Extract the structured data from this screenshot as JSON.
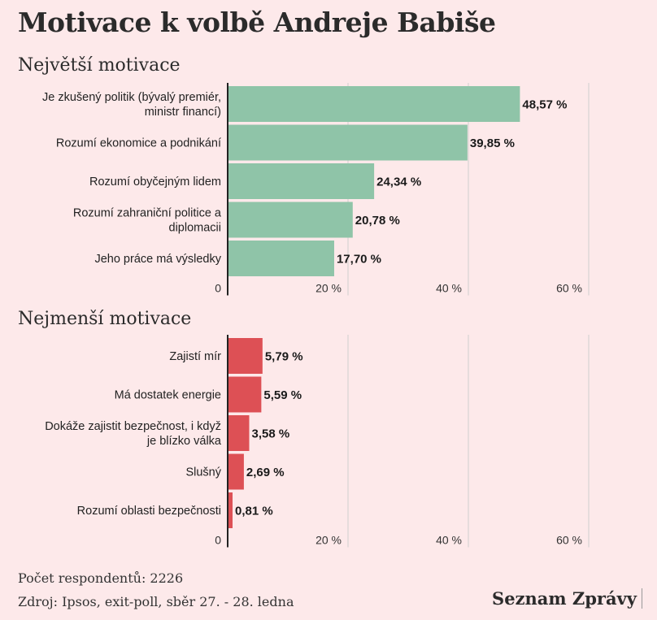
{
  "title": "Motivace k volbě Andreje Babiše",
  "chart_data": [
    {
      "type": "bar",
      "orientation": "horizontal",
      "title": "Největší motivace",
      "color": "#8fc4a8",
      "categories": [
        [
          "Je zkušený politik (bývalý premiér,",
          "ministr financí)"
        ],
        [
          "Rozumí ekonomice a podnikání"
        ],
        [
          "Rozumí obyčejným lidem"
        ],
        [
          "Rozumí zahraniční politice a",
          "diplomacii"
        ],
        [
          "Jeho práce má výsledky"
        ]
      ],
      "values": [
        48.57,
        39.85,
        24.34,
        20.78,
        17.7
      ],
      "value_labels": [
        "48,57 %",
        "39,85 %",
        "24,34 %",
        "20,78 %",
        "17,70 %"
      ],
      "xlim": [
        0,
        60
      ],
      "x_ticks": [
        0,
        20,
        40,
        60
      ],
      "x_tick_labels": [
        "0",
        "20 %",
        "40 %",
        "60 %"
      ],
      "grid": true
    },
    {
      "type": "bar",
      "orientation": "horizontal",
      "title": "Nejmenší motivace",
      "color": "#dd5055",
      "categories": [
        [
          "Zajistí mír"
        ],
        [
          "Má dostatek energie"
        ],
        [
          "Dokáže zajistit bezpečnost, i když",
          "je blízko válka"
        ],
        [
          "Slušný"
        ],
        [
          "Rozumí oblasti bezpečnosti"
        ]
      ],
      "values": [
        5.79,
        5.59,
        3.58,
        2.69,
        0.81
      ],
      "value_labels": [
        "5,79 %",
        "5,59 %",
        "3,58 %",
        "2,69 %",
        "0,81 %"
      ],
      "xlim": [
        0,
        60
      ],
      "x_ticks": [
        0,
        20,
        40,
        60
      ],
      "x_tick_labels": [
        "0",
        "20 %",
        "40 %",
        "60 %"
      ],
      "grid": true
    }
  ],
  "footer": {
    "respondents": "Počet respondentů: 2226",
    "source": "Zdroj: Ipsos, exit-poll, sběr 27. - 28. ledna",
    "brand": "Seznam Zprávy"
  }
}
